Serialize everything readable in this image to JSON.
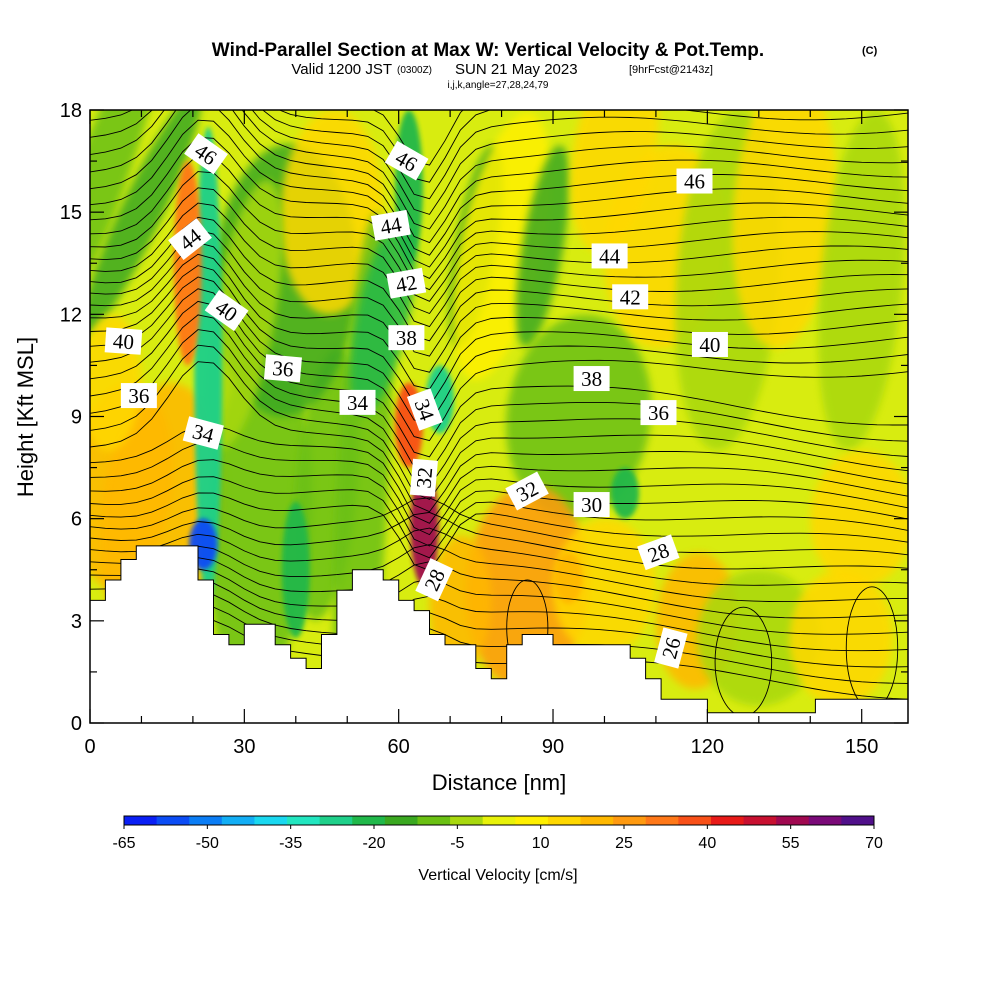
{
  "header": {
    "title_main": "Wind-Parallel Section at Max W: Vertical Velocity & Pot.Temp.",
    "title_mark": "(C)",
    "valid_prefix": "Valid 1200 JST",
    "valid_zulu": "(0300Z)",
    "valid_date": "SUN 21 May 2023",
    "valid_fcst": "[9hrFcst@2143z]",
    "indices": "i,j,k,angle=27,28,24,79"
  },
  "colors": {
    "fill_scale": [
      "#0a1ff5",
      "#0b4cf5",
      "#0b7df5",
      "#12aef5",
      "#1ad8f0",
      "#22e6c0",
      "#1fd08a",
      "#20b84a",
      "#3aa820",
      "#6ac012",
      "#a8d80e",
      "#e8f20a",
      "#fff000",
      "#ffd800",
      "#ffb800",
      "#ff9a10",
      "#ff7818",
      "#f85018",
      "#e81a18",
      "#c81030",
      "#a00850",
      "#7a0a78",
      "#50108a"
    ],
    "contour": "#000000",
    "terrain": "#ffffff"
  },
  "chart_data": {
    "type": "heatmap",
    "title": "Wind-Parallel Section at Max W: Vertical Velocity & Pot.Temp.",
    "xlabel": "Distance [nm]",
    "ylabel": "Height [Kft MSL]",
    "xlim": [
      0,
      159
    ],
    "ylim": [
      0,
      18
    ],
    "x_ticks": [
      0,
      30,
      60,
      90,
      120,
      150
    ],
    "y_ticks": [
      0,
      3,
      6,
      9,
      12,
      15,
      18
    ],
    "x_tick_labels": [
      "0",
      "30",
      "60",
      "90",
      "120",
      "150"
    ],
    "y_tick_labels": [
      "0",
      "3",
      "6",
      "9",
      "12",
      "15",
      "18"
    ],
    "colorbar": {
      "label": "Vertical Velocity [cm/s]",
      "min": -65,
      "max": 70,
      "tick_values": [
        -65,
        -50,
        -35,
        -20,
        -5,
        10,
        25,
        40,
        55,
        70
      ],
      "tick_labels": [
        "-65",
        "-50",
        "-35",
        "-20",
        "-5",
        "10",
        "25",
        "40",
        "55",
        "70"
      ]
    },
    "vertical_velocity_features": [
      {
        "x": 23,
        "y_range": [
          3.5,
          17.5
        ],
        "w_cm_s": -30
      },
      {
        "x": 22,
        "y_range": [
          4.5,
          6.0
        ],
        "w_cm_s": -60
      },
      {
        "x": 19,
        "y_range": [
          10.5,
          16.5
        ],
        "w_cm_s": 35
      },
      {
        "x": 65,
        "y_range": [
          4.0,
          7.5
        ],
        "w_cm_s": 60
      },
      {
        "x": 62,
        "y_range": [
          7.5,
          10.0
        ],
        "w_cm_s": 40
      },
      {
        "x": 68,
        "y_range": [
          8.5,
          10.5
        ],
        "w_cm_s": -30
      },
      {
        "x": 62,
        "y_range": [
          13.5,
          18.0
        ],
        "w_cm_s": -20
      },
      {
        "x": 40,
        "y_range": [
          2.5,
          6.5
        ],
        "w_cm_s": -20
      },
      {
        "x": 104,
        "y_range": [
          6.0,
          7.5
        ],
        "w_cm_s": -20
      },
      {
        "x": 93,
        "y_range": [
          3.5,
          5.0
        ],
        "w_cm_s": 20
      }
    ],
    "potential_temperature_labels": [
      {
        "value": "46",
        "x": 22.5,
        "y": 16.7,
        "angle": 35
      },
      {
        "value": "44",
        "x": 19.5,
        "y": 14.2,
        "angle": -38
      },
      {
        "value": "40",
        "x": 26.5,
        "y": 12.1,
        "angle": 35
      },
      {
        "value": "40",
        "x": 6.5,
        "y": 11.2,
        "angle": 4
      },
      {
        "value": "36",
        "x": 9.5,
        "y": 9.6,
        "angle": 0
      },
      {
        "value": "34",
        "x": 22,
        "y": 8.5,
        "angle": 15
      },
      {
        "value": "36",
        "x": 37.5,
        "y": 10.4,
        "angle": 5
      },
      {
        "value": "34",
        "x": 52,
        "y": 9.4,
        "angle": 0
      },
      {
        "value": "46",
        "x": 61.5,
        "y": 16.5,
        "angle": 30
      },
      {
        "value": "44",
        "x": 58.5,
        "y": 14.6,
        "angle": -10
      },
      {
        "value": "42",
        "x": 61.5,
        "y": 12.9,
        "angle": -10
      },
      {
        "value": "38",
        "x": 61.5,
        "y": 11.3,
        "angle": 0
      },
      {
        "value": "34",
        "x": 65,
        "y": 9.2,
        "angle": 70
      },
      {
        "value": "32",
        "x": 65,
        "y": 7.2,
        "angle": -85
      },
      {
        "value": "32",
        "x": 85,
        "y": 6.8,
        "angle": -28
      },
      {
        "value": "30",
        "x": 97.5,
        "y": 6.4,
        "angle": 0
      },
      {
        "value": "28",
        "x": 67,
        "y": 4.2,
        "angle": -65
      },
      {
        "value": "28",
        "x": 110.5,
        "y": 5.0,
        "angle": -20
      },
      {
        "value": "26",
        "x": 113,
        "y": 2.2,
        "angle": -75
      },
      {
        "value": "38",
        "x": 97.5,
        "y": 10.1,
        "angle": 0
      },
      {
        "value": "36",
        "x": 110.5,
        "y": 9.1,
        "angle": 0
      },
      {
        "value": "40",
        "x": 120.5,
        "y": 11.1,
        "angle": 0
      },
      {
        "value": "42",
        "x": 105,
        "y": 12.5,
        "angle": 0
      },
      {
        "value": "44",
        "x": 101,
        "y": 13.7,
        "angle": 0
      },
      {
        "value": "46",
        "x": 117.5,
        "y": 15.9,
        "angle": 0
      }
    ],
    "terrain_profile": [
      [
        0,
        3.6
      ],
      [
        3,
        3.6
      ],
      [
        3,
        4.2
      ],
      [
        6,
        4.2
      ],
      [
        6,
        4.8
      ],
      [
        9,
        4.8
      ],
      [
        9,
        5.2
      ],
      [
        21,
        5.2
      ],
      [
        21,
        4.2
      ],
      [
        24,
        4.2
      ],
      [
        24,
        2.6
      ],
      [
        27,
        2.6
      ],
      [
        27,
        2.3
      ],
      [
        30,
        2.3
      ],
      [
        30,
        2.9
      ],
      [
        36,
        2.9
      ],
      [
        36,
        2.3
      ],
      [
        39,
        2.3
      ],
      [
        39,
        1.9
      ],
      [
        42,
        1.9
      ],
      [
        42,
        1.6
      ],
      [
        45,
        1.6
      ],
      [
        45,
        2.6
      ],
      [
        48,
        2.6
      ],
      [
        48,
        3.9
      ],
      [
        51,
        3.9
      ],
      [
        51,
        4.5
      ],
      [
        57,
        4.5
      ],
      [
        57,
        4.2
      ],
      [
        60,
        4.2
      ],
      [
        60,
        3.6
      ],
      [
        63,
        3.6
      ],
      [
        63,
        3.3
      ],
      [
        66,
        3.3
      ],
      [
        66,
        2.6
      ],
      [
        69,
        2.6
      ],
      [
        69,
        2.3
      ],
      [
        75,
        2.3
      ],
      [
        75,
        1.6
      ],
      [
        78,
        1.6
      ],
      [
        78,
        1.3
      ],
      [
        81,
        1.3
      ],
      [
        81,
        2.3
      ],
      [
        84,
        2.3
      ],
      [
        84,
        2.6
      ],
      [
        90,
        2.6
      ],
      [
        90,
        2.3
      ],
      [
        105,
        2.3
      ],
      [
        105,
        1.9
      ],
      [
        108,
        1.9
      ],
      [
        108,
        1.3
      ],
      [
        111,
        1.3
      ],
      [
        111,
        0.7
      ],
      [
        120,
        0.7
      ],
      [
        120,
        0.3
      ],
      [
        141,
        0.3
      ],
      [
        141,
        0.7
      ],
      [
        159,
        0.7
      ]
    ]
  }
}
